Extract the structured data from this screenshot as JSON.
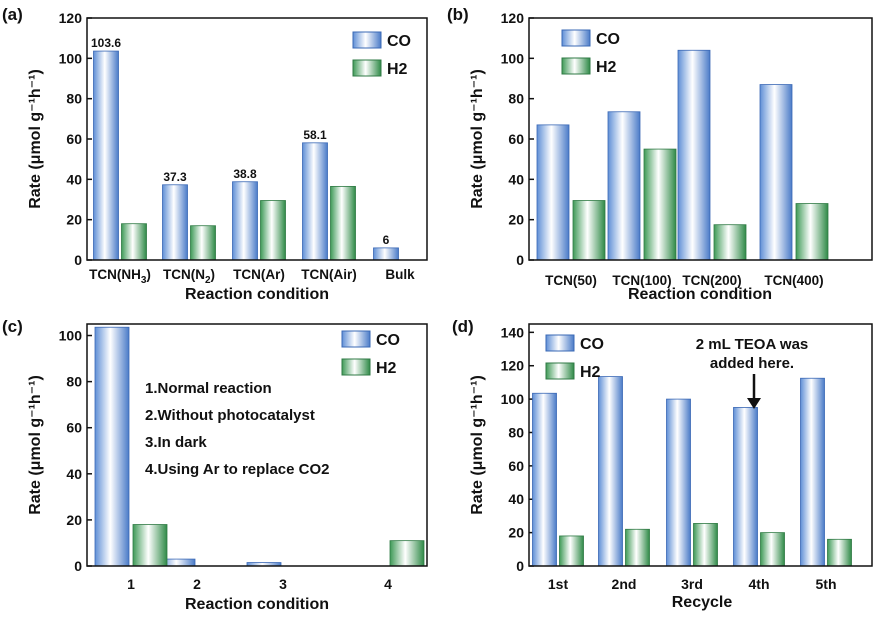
{
  "colors": {
    "co": "#9ec3f0",
    "h2": "#8ccf9a",
    "frame": "#111111"
  },
  "chart_data": [
    {
      "panel": "(a)",
      "type": "bar",
      "categories": [
        "TCN(NH3)",
        "TCN(N2)",
        "TCN(Ar)",
        "TCN(Air)",
        "Bulk"
      ],
      "category_labels": [
        {
          "main": "TCN(NH",
          "sub": "3",
          "end": ")"
        },
        {
          "main": "TCN(N",
          "sub": "2",
          "end": ")"
        },
        {
          "main": "TCN(Ar)",
          "sub": "",
          "end": ""
        },
        {
          "main": "TCN(Air)",
          "sub": "",
          "end": ""
        },
        {
          "main": "Bulk",
          "sub": "",
          "end": ""
        }
      ],
      "series": [
        {
          "name": "CO",
          "values": [
            103.6,
            37.3,
            38.8,
            58.1,
            6
          ]
        },
        {
          "name": "H2",
          "values": [
            18,
            17,
            29.5,
            36.5,
            0
          ]
        }
      ],
      "data_labels": [
        "103.6",
        "37.3",
        "38.8",
        "58.1",
        "6"
      ],
      "ylim": [
        0,
        120
      ],
      "yticks": [
        0,
        20,
        40,
        60,
        80,
        100,
        120
      ],
      "ylabel": "Rate (μmol g⁻¹h⁻¹)",
      "xlabel": "Reaction condition",
      "legend_position": "top-right"
    },
    {
      "panel": "(b)",
      "type": "bar",
      "categories": [
        "TCN(50)",
        "TCN(100)",
        "TCN(200)",
        "TCN(400)"
      ],
      "series": [
        {
          "name": "CO",
          "values": [
            67,
            73.5,
            104,
            87
          ]
        },
        {
          "name": "H2",
          "values": [
            29.5,
            55,
            17.5,
            28
          ]
        }
      ],
      "ylim": [
        0,
        120
      ],
      "yticks": [
        0,
        20,
        40,
        60,
        80,
        100,
        120
      ],
      "ylabel": "Rate (μmol g⁻¹h⁻¹)",
      "xlabel": "Reaction condition",
      "legend_position": "top-left"
    },
    {
      "panel": "(c)",
      "type": "bar",
      "categories": [
        "1",
        "2",
        "3",
        "4"
      ],
      "series": [
        {
          "name": "CO",
          "values": [
            103.6,
            3,
            1.5,
            0
          ]
        },
        {
          "name": "H2",
          "values": [
            18,
            0,
            0,
            11
          ]
        }
      ],
      "ylim": [
        0,
        105
      ],
      "yticks": [
        0,
        20,
        40,
        60,
        80,
        100
      ],
      "ylabel": "Rate (μmol g⁻¹h⁻¹)",
      "xlabel": "Reaction condition",
      "legend_position": "top-right",
      "annotations": [
        "1.Normal reaction",
        "2.Without photocatalyst",
        "3.In dark",
        "4.Using Ar to replace CO2"
      ]
    },
    {
      "panel": "(d)",
      "type": "bar",
      "categories": [
        "1st",
        "2nd",
        "3rd",
        "4th",
        "5th"
      ],
      "series": [
        {
          "name": "CO",
          "values": [
            103.5,
            113.5,
            100,
            95,
            112.5
          ]
        },
        {
          "name": "H2",
          "values": [
            18,
            22,
            25.5,
            20,
            16
          ]
        }
      ],
      "ylim": [
        0,
        145
      ],
      "yticks": [
        0,
        20,
        40,
        60,
        80,
        100,
        120,
        140
      ],
      "ylabel": "Rate (μmol g⁻¹h⁻¹)",
      "xlabel": "Recycle",
      "legend_position": "top-left",
      "annotations": [
        "2 mL TEOA was",
        "added here."
      ]
    }
  ]
}
